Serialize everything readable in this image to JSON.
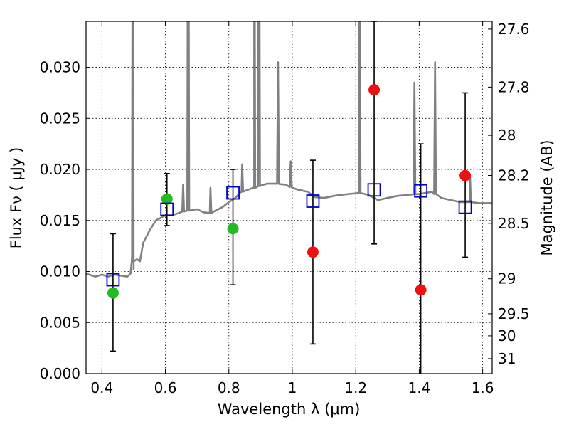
{
  "chart_data": {
    "type": "scatter",
    "xlabel": "Wavelength  λ (μm)",
    "ylabel": "Flux  Fν  ( μJy )",
    "ylabel_right": "Magnitude (AB)",
    "xlim": [
      0.35,
      1.63
    ],
    "ylim": [
      0,
      0.0345
    ],
    "x_ticks": [
      0.4,
      0.6,
      0.8,
      1.0,
      1.2,
      1.4,
      1.6
    ],
    "x_tick_labels": [
      "0.4",
      "0.6",
      "0.8",
      "1",
      "1.2",
      "1.4",
      "1.6"
    ],
    "y_ticks": [
      0,
      0.005,
      0.01,
      0.015,
      0.02,
      0.025,
      0.03
    ],
    "y_tick_labels": [
      "0.000",
      "0.005",
      "0.010",
      "0.015",
      "0.020",
      "0.025",
      "0.030"
    ],
    "right_ticks": [
      {
        "label": "27.6",
        "flux": 0.03374
      },
      {
        "label": "27.8",
        "flux": 0.02806
      },
      {
        "label": "28",
        "flux": 0.02334
      },
      {
        "label": "28.2",
        "flux": 0.01941
      },
      {
        "label": "28.5",
        "flux": 0.01472
      },
      {
        "label": "29",
        "flux": 0.00929
      },
      {
        "label": "29.5",
        "flux": 0.00586
      },
      {
        "label": "30",
        "flux": 0.0037
      },
      {
        "label": "31",
        "flux": 0.00147
      }
    ],
    "grid": true,
    "colors": {
      "spectrum": "#808080",
      "model": "#0000cc",
      "green": "#22bb22",
      "red": "#ee1111",
      "errorbar": "#000000"
    },
    "spectrum": {
      "x": [
        0.35,
        0.38,
        0.4,
        0.42,
        0.44,
        0.46,
        0.48,
        0.49,
        0.495,
        0.5,
        0.51,
        0.52,
        0.53,
        0.55,
        0.57,
        0.6,
        0.62,
        0.64,
        0.66,
        0.68,
        0.7,
        0.72,
        0.74,
        0.76,
        0.78,
        0.8,
        0.82,
        0.84,
        0.86,
        0.88,
        0.9,
        0.92,
        0.95,
        0.98,
        1.0,
        1.02,
        1.05,
        1.07,
        1.1,
        1.13,
        1.15,
        1.18,
        1.21,
        1.24,
        1.27,
        1.3,
        1.33,
        1.36,
        1.4,
        1.44,
        1.47,
        1.5,
        1.53,
        1.56,
        1.59,
        1.63
      ],
      "y": [
        0.0098,
        0.0095,
        0.0097,
        0.0095,
        0.0097,
        0.0096,
        0.0095,
        0.0098,
        0.0115,
        0.0102,
        0.0112,
        0.011,
        0.0128,
        0.014,
        0.015,
        0.0155,
        0.0155,
        0.0157,
        0.0159,
        0.016,
        0.0161,
        0.0158,
        0.0157,
        0.016,
        0.0163,
        0.0168,
        0.0172,
        0.0178,
        0.018,
        0.0182,
        0.0184,
        0.0186,
        0.0186,
        0.0185,
        0.0182,
        0.018,
        0.0178,
        0.0173,
        0.0172,
        0.0174,
        0.0175,
        0.0176,
        0.0177,
        0.0175,
        0.017,
        0.0172,
        0.0174,
        0.0175,
        0.0176,
        0.0178,
        0.0172,
        0.017,
        0.0168,
        0.0168,
        0.0167,
        0.0167
      ]
    },
    "spectrum_lines": [
      {
        "x": 0.497,
        "peak": 0.06
      },
      {
        "x": 0.656,
        "peak": 0.0185
      },
      {
        "x": 0.672,
        "peak": 0.06
      },
      {
        "x": 0.742,
        "peak": 0.0182
      },
      {
        "x": 0.842,
        "peak": 0.0205
      },
      {
        "x": 0.88,
        "peak": 0.06
      },
      {
        "x": 0.895,
        "peak": 0.06
      },
      {
        "x": 0.955,
        "peak": 0.0305
      },
      {
        "x": 0.995,
        "peak": 0.0208
      },
      {
        "x": 1.212,
        "peak": 0.06
      },
      {
        "x": 1.385,
        "peak": 0.0285
      },
      {
        "x": 1.45,
        "peak": 0.0305
      },
      {
        "x": 1.56,
        "peak": 0.0195
      }
    ],
    "model_points": {
      "x": [
        0.435,
        0.605,
        0.813,
        1.065,
        1.258,
        1.405,
        1.545
      ],
      "y": [
        0.0092,
        0.0161,
        0.0177,
        0.0169,
        0.018,
        0.0179,
        0.0163
      ]
    },
    "observed_points": {
      "x": [
        0.435,
        0.605,
        0.813,
        1.065,
        1.258,
        1.405,
        1.545
      ],
      "y": [
        0.0079,
        0.0171,
        0.0142,
        0.0119,
        0.0278,
        0.0082,
        0.0194
      ],
      "color": [
        "green",
        "green",
        "green",
        "red",
        "red",
        "red",
        "red"
      ],
      "err_low": [
        0.0022,
        0.0145,
        0.0087,
        0.0029,
        0.0127,
        -0.001,
        0.0114
      ],
      "err_high": [
        0.0137,
        0.0196,
        0.02,
        0.0209,
        0.0345,
        0.0225,
        0.0275
      ]
    }
  }
}
